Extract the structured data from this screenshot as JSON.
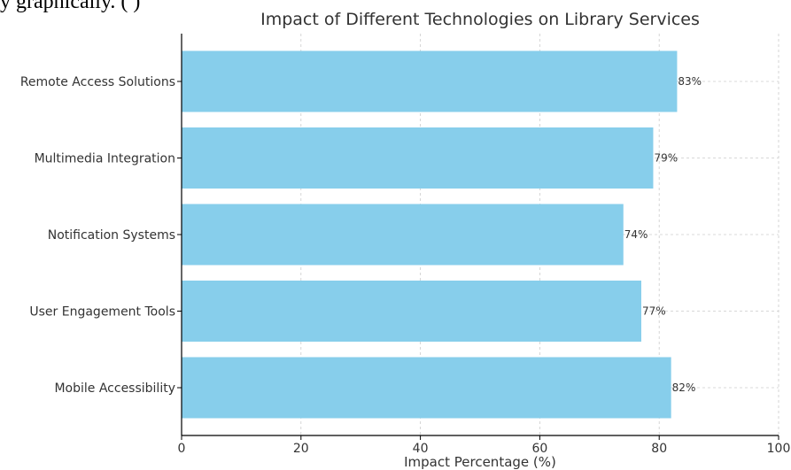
{
  "top_text": "y                                          graphically.  ( )",
  "chart_data": {
    "type": "bar",
    "orientation": "horizontal",
    "title": "Impact of Different Technologies on Library Services",
    "xlabel": "Impact Percentage (%)",
    "ylabel": "",
    "xlim": [
      0,
      100
    ],
    "xticks": [
      "0",
      "20",
      "40",
      "60",
      "80",
      "100"
    ],
    "grid": true,
    "categories": [
      "Remote Access Solutions",
      "Multimedia Integration",
      "Notification Systems",
      "User Engagement Tools",
      "Mobile Accessibility"
    ],
    "values": [
      83,
      79,
      74,
      77,
      82
    ],
    "data_labels": [
      "83%",
      "79%",
      "74%",
      "77%",
      "82%"
    ],
    "bar_color": "#87ceeb"
  }
}
